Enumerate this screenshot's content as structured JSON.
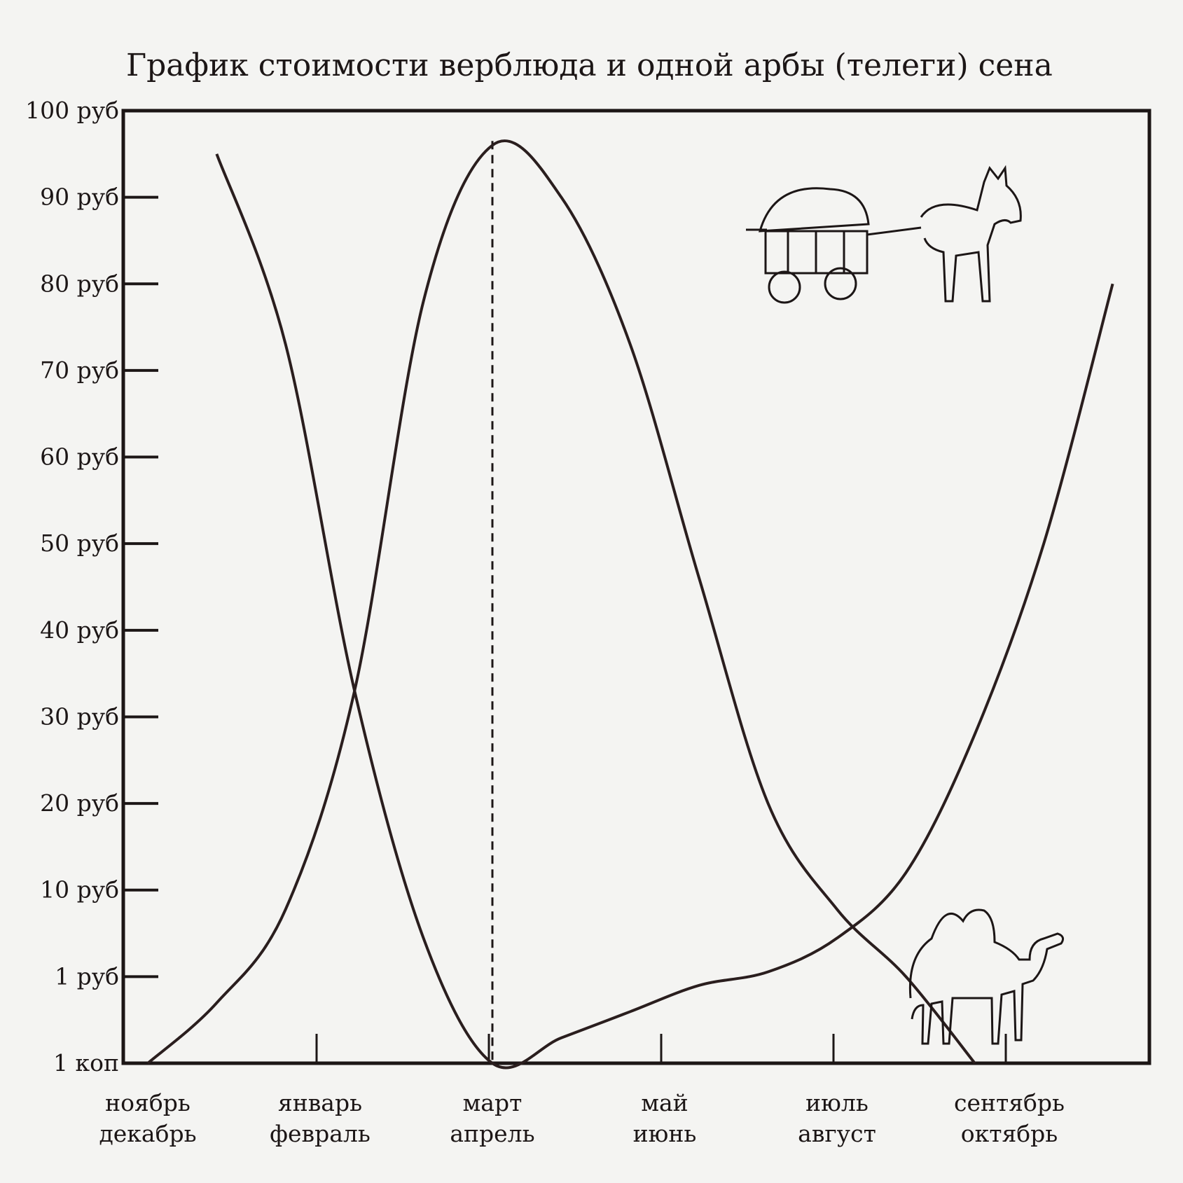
{
  "chart_data": {
    "type": "line",
    "title": "График стоимости верблюда и одной арбы (телеги) сена",
    "y_scale": "custom-nonlinear",
    "y_ticks": [
      "1 коп",
      "1 руб",
      "10 руб",
      "20 руб",
      "30 руб",
      "40 руб",
      "50 руб",
      "60 руб",
      "70 руб",
      "80 руб",
      "90 руб",
      "100 руб"
    ],
    "x_ticks": [
      {
        "top": "ноябрь",
        "bottom": "декабрь"
      },
      {
        "top": "январь",
        "bottom": "февраль"
      },
      {
        "top": "март",
        "bottom": "апрель"
      },
      {
        "top": "май",
        "bottom": "июнь"
      },
      {
        "top": "июль",
        "bottom": "август"
      },
      {
        "top": "сентябрь",
        "bottom": "октябрь"
      }
    ],
    "x_range": [
      0,
      6
    ],
    "dashed_marker_x": 2,
    "series": [
      {
        "id": "declining-then-rising",
        "x": [
          0.4,
          0.8,
          1.2,
          1.6,
          2.0,
          2.4,
          2.8,
          3.2,
          3.6,
          4.0,
          4.4,
          4.8,
          5.2,
          5.6
        ],
        "y": [
          95,
          73,
          33,
          5,
          0.01,
          0.3,
          0.6,
          0.9,
          1.5,
          5,
          12,
          28,
          50,
          80
        ]
      },
      {
        "id": "rising-then-declining",
        "x": [
          0,
          0.4,
          0.8,
          1.2,
          1.6,
          2.0,
          2.4,
          2.8,
          3.2,
          3.6,
          4.0,
          4.4,
          4.8
        ],
        "y": [
          0.01,
          0.7,
          8,
          33,
          78,
          96,
          90,
          73,
          46,
          20,
          8,
          1,
          0.01
        ]
      }
    ],
    "grid": false,
    "illustrations": [
      "cart-icon",
      "camel-icon"
    ]
  }
}
